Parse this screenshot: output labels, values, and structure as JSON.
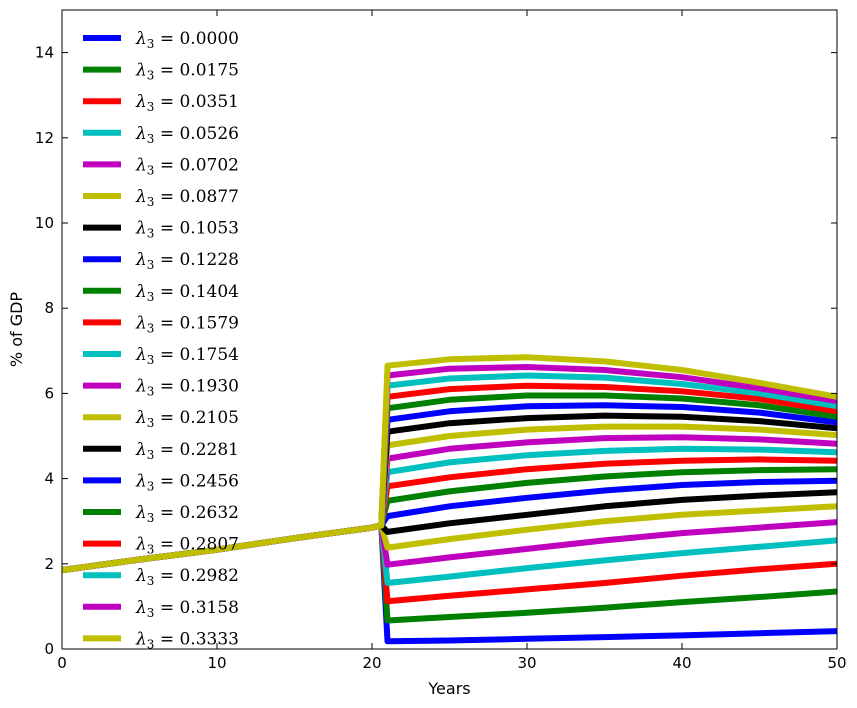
{
  "chart_data": {
    "type": "line",
    "xlabel": "Years",
    "ylabel": "% of GDP",
    "xlim": [
      0,
      50
    ],
    "ylim": [
      0,
      15
    ],
    "xticks": [
      0,
      10,
      20,
      30,
      40,
      50
    ],
    "yticks": [
      0,
      2,
      4,
      6,
      8,
      10,
      12,
      14
    ],
    "grid": false,
    "legend_position": "upper-left",
    "x": [
      0,
      5,
      10,
      15,
      20,
      20.6,
      21,
      25,
      30,
      35,
      40,
      45,
      50
    ],
    "series": [
      {
        "name": "λ3 = 0.0000",
        "color": "#0000ff",
        "values": [
          1.85,
          2.1,
          2.33,
          2.6,
          2.85,
          2.9,
          0.18,
          0.2,
          0.24,
          0.28,
          0.32,
          0.37,
          0.42
        ]
      },
      {
        "name": "λ3 = 0.0175",
        "color": "#008000",
        "values": [
          1.85,
          2.1,
          2.33,
          2.6,
          2.85,
          2.9,
          0.67,
          0.75,
          0.85,
          0.97,
          1.1,
          1.22,
          1.35
        ]
      },
      {
        "name": "λ3 = 0.0351",
        "color": "#ff0000",
        "values": [
          1.85,
          2.1,
          2.33,
          2.6,
          2.85,
          2.9,
          1.12,
          1.25,
          1.4,
          1.55,
          1.72,
          1.87,
          2.0
        ]
      },
      {
        "name": "λ3 = 0.0526",
        "color": "#00bfbf",
        "values": [
          1.85,
          2.1,
          2.33,
          2.6,
          2.85,
          2.9,
          1.55,
          1.7,
          1.9,
          2.08,
          2.25,
          2.4,
          2.55
        ]
      },
      {
        "name": "λ3 = 0.0702",
        "color": "#bf00bf",
        "values": [
          1.85,
          2.1,
          2.33,
          2.6,
          2.85,
          2.9,
          1.98,
          2.15,
          2.35,
          2.55,
          2.72,
          2.85,
          2.98
        ]
      },
      {
        "name": "λ3 = 0.0877",
        "color": "#bfbf00",
        "values": [
          1.85,
          2.1,
          2.33,
          2.6,
          2.85,
          2.9,
          2.38,
          2.58,
          2.8,
          3.0,
          3.15,
          3.25,
          3.35
        ]
      },
      {
        "name": "λ3 = 0.1053",
        "color": "#000000",
        "values": [
          1.85,
          2.1,
          2.33,
          2.6,
          2.85,
          2.9,
          2.75,
          2.95,
          3.15,
          3.35,
          3.5,
          3.6,
          3.68
        ]
      },
      {
        "name": "λ3 = 0.1228",
        "color": "#0000ff",
        "values": [
          1.85,
          2.1,
          2.33,
          2.6,
          2.85,
          2.9,
          3.12,
          3.35,
          3.55,
          3.72,
          3.85,
          3.92,
          3.95
        ]
      },
      {
        "name": "λ3 = 0.1404",
        "color": "#008000",
        "values": [
          1.85,
          2.1,
          2.33,
          2.6,
          2.85,
          2.9,
          3.48,
          3.7,
          3.9,
          4.05,
          4.15,
          4.2,
          4.22
        ]
      },
      {
        "name": "λ3 = 0.1579",
        "color": "#ff0000",
        "values": [
          1.85,
          2.1,
          2.33,
          2.6,
          2.85,
          2.9,
          3.82,
          4.03,
          4.22,
          4.35,
          4.42,
          4.45,
          4.42
        ]
      },
      {
        "name": "λ3 = 0.1754",
        "color": "#00bfbf",
        "values": [
          1.85,
          2.1,
          2.33,
          2.6,
          2.85,
          2.9,
          4.15,
          4.38,
          4.55,
          4.65,
          4.7,
          4.68,
          4.62
        ]
      },
      {
        "name": "λ3 = 0.1930",
        "color": "#bf00bf",
        "values": [
          1.85,
          2.1,
          2.33,
          2.6,
          2.85,
          2.9,
          4.47,
          4.7,
          4.85,
          4.95,
          4.97,
          4.92,
          4.82
        ]
      },
      {
        "name": "λ3 = 0.2105",
        "color": "#bfbf00",
        "values": [
          1.85,
          2.1,
          2.33,
          2.6,
          2.85,
          2.9,
          4.78,
          5.0,
          5.15,
          5.22,
          5.22,
          5.15,
          5.02
        ]
      },
      {
        "name": "λ3 = 0.2281",
        "color": "#000000",
        "values": [
          1.85,
          2.1,
          2.33,
          2.6,
          2.85,
          2.9,
          5.1,
          5.3,
          5.42,
          5.48,
          5.45,
          5.35,
          5.18
        ]
      },
      {
        "name": "λ3 = 0.2456",
        "color": "#0000ff",
        "values": [
          1.85,
          2.1,
          2.33,
          2.6,
          2.85,
          2.9,
          5.38,
          5.58,
          5.7,
          5.72,
          5.68,
          5.55,
          5.32
        ]
      },
      {
        "name": "λ3 = 0.2632",
        "color": "#008000",
        "values": [
          1.85,
          2.1,
          2.33,
          2.6,
          2.85,
          2.9,
          5.65,
          5.85,
          5.95,
          5.95,
          5.88,
          5.72,
          5.45
        ]
      },
      {
        "name": "λ3 = 0.2807",
        "color": "#ff0000",
        "values": [
          1.85,
          2.1,
          2.33,
          2.6,
          2.85,
          2.9,
          5.92,
          6.1,
          6.18,
          6.15,
          6.05,
          5.87,
          5.58
        ]
      },
      {
        "name": "λ3 = 0.2982",
        "color": "#00bfbf",
        "values": [
          1.85,
          2.1,
          2.33,
          2.6,
          2.85,
          2.9,
          6.18,
          6.35,
          6.42,
          6.37,
          6.22,
          6.0,
          5.7
        ]
      },
      {
        "name": "λ3 = 0.3158",
        "color": "#bf00bf",
        "values": [
          1.85,
          2.1,
          2.33,
          2.6,
          2.85,
          2.9,
          6.42,
          6.58,
          6.62,
          6.55,
          6.38,
          6.12,
          5.82
        ]
      },
      {
        "name": "λ3 = 0.3333",
        "color": "#bfbf00",
        "values": [
          1.85,
          2.1,
          2.33,
          2.6,
          2.85,
          2.9,
          6.65,
          6.8,
          6.85,
          6.75,
          6.55,
          6.25,
          5.92
        ]
      }
    ]
  }
}
